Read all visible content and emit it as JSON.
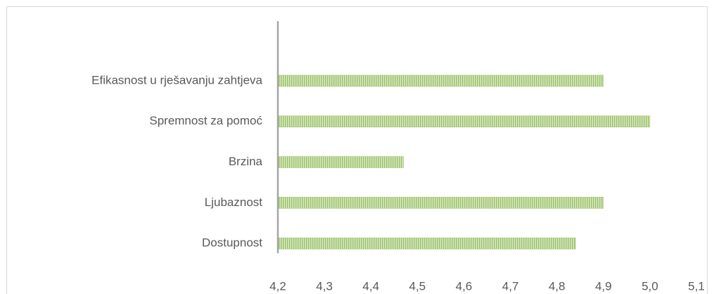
{
  "chart_data": {
    "type": "hbar",
    "categories": [
      "Efikasnost u rješavanju zahtjeva",
      "Spremnost za pomoć",
      "Brzina",
      "Ljubaznost",
      "Dostupnost"
    ],
    "values": [
      4.9,
      5.0,
      4.47,
      4.9,
      4.84
    ],
    "color": "#9bc26a",
    "xlim": [
      4.2,
      5.1
    ],
    "xticks": [
      {
        "value": 4.2,
        "label": "4,2"
      },
      {
        "value": 4.3,
        "label": "4,3"
      },
      {
        "value": 4.4,
        "label": "4,4"
      },
      {
        "value": 4.5,
        "label": "4,5"
      },
      {
        "value": 4.6,
        "label": "4,6"
      },
      {
        "value": 4.7,
        "label": "4,7"
      },
      {
        "value": 4.8,
        "label": "4,8"
      },
      {
        "value": 4.9,
        "label": "4,9"
      },
      {
        "value": 5.0,
        "label": "5,0"
      },
      {
        "value": 5.1,
        "label": "5,1"
      }
    ],
    "grid": false
  }
}
